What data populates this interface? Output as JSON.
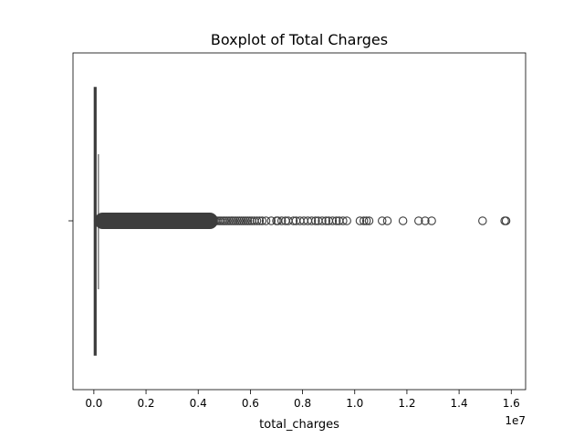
{
  "chart_data": {
    "type": "boxplot",
    "orientation": "horizontal",
    "title": "Boxplot of Total Charges",
    "xlabel": "total_charges",
    "ylabel": "",
    "x_offset_label": "1e7",
    "xlim": [
      -800000,
      16550000
    ],
    "x_ticks": [
      0,
      2000000,
      4000000,
      6000000,
      8000000,
      10000000,
      12000000,
      14000000,
      16000000
    ],
    "x_tick_labels": [
      "0.0",
      "0.2",
      "0.4",
      "0.6",
      "0.8",
      "1.0",
      "1.2",
      "1.4",
      "1.6"
    ],
    "grid": false,
    "box": {
      "q1": 20000,
      "median": 45000,
      "q3": 80000,
      "whisker_low": 0,
      "whisker_high": 175000,
      "color": "#3d3d3d"
    },
    "outlier_band": [
      180000,
      4600000
    ],
    "outliers": [
      4650000,
      4720000,
      4800000,
      4870000,
      4950000,
      5020000,
      5100000,
      5180000,
      5260000,
      5340000,
      5420000,
      5500000,
      5580000,
      5660000,
      5740000,
      5820000,
      5900000,
      5980000,
      6060000,
      6150000,
      6250000,
      6350000,
      6450000,
      6600000,
      6800000,
      7000000,
      7050000,
      7200000,
      7350000,
      7450000,
      7650000,
      7750000,
      7900000,
      8050000,
      8200000,
      8350000,
      8500000,
      8600000,
      8750000,
      8900000,
      9000000,
      9150000,
      9300000,
      9400000,
      9550000,
      9700000,
      10200000,
      10350000,
      10450000,
      10550000,
      11050000,
      11250000,
      11850000,
      12450000,
      12700000,
      12950000,
      14900000,
      15750000,
      15800000
    ]
  }
}
